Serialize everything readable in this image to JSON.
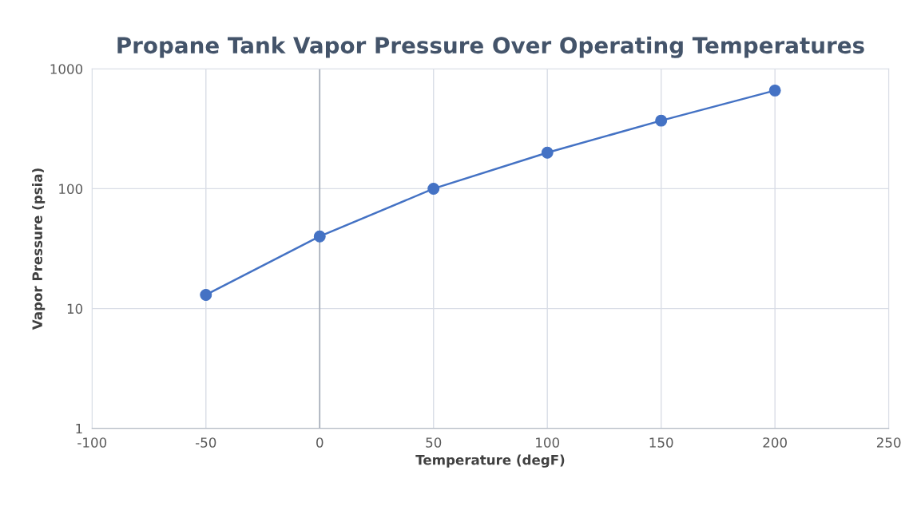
{
  "chart_data": {
    "type": "line",
    "title": "Propane Tank Vapor Pressure Over Operating Temperatures",
    "xlabel": "Temperature (degF)",
    "ylabel": "Vapor Pressure (psia)",
    "x": [
      -50,
      0,
      50,
      100,
      150,
      200
    ],
    "series": [
      {
        "color": "#4472c4",
        "values": [
          13,
          40,
          100,
          200,
          370,
          660
        ]
      }
    ],
    "xlim": [
      -100,
      250
    ],
    "xticks": [
      -100,
      -50,
      0,
      50,
      100,
      150,
      200,
      250
    ],
    "ylim": [
      1,
      1000
    ],
    "yticks": [
      1,
      10,
      100,
      1000
    ],
    "log": "y",
    "grid": true,
    "marker": "circle",
    "line_style": "solid",
    "legend": false,
    "ref_lines": [
      {
        "axis": "x",
        "value": 0,
        "color": "#a5acb8"
      }
    ]
  }
}
